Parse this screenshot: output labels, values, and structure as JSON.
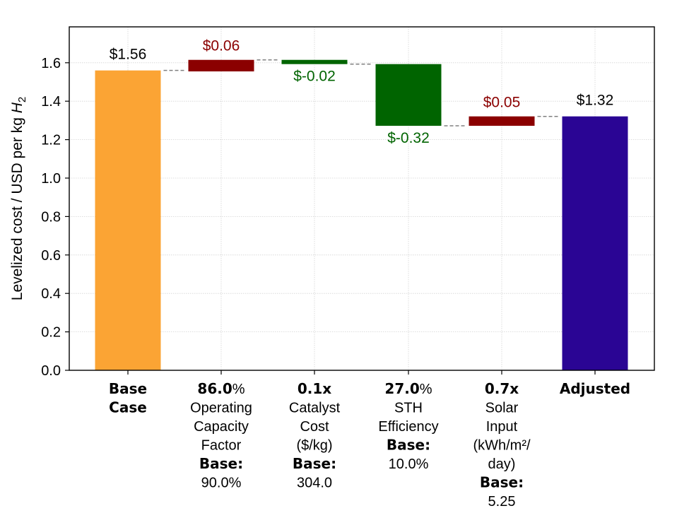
{
  "chart_data": {
    "type": "bar",
    "subtype": "waterfall",
    "ylabel": "Levelized cost / USD per kg",
    "ylabel_subscript": "H",
    "ylabel_subscript_index": "2",
    "ylim": [
      0,
      1.78
    ],
    "yticks": [
      "0.0",
      "0.2",
      "0.4",
      "0.6",
      "0.8",
      "1.0",
      "1.2",
      "1.4",
      "1.6"
    ],
    "ytick_values": [
      0,
      0.2,
      0.4,
      0.6,
      0.8,
      1.0,
      1.2,
      1.4,
      1.6
    ],
    "grid": true,
    "colors": {
      "base": "#FBA434",
      "increase": "#8B0000",
      "decrease": "#006400",
      "final": "#2A0594",
      "connector": "#808080"
    },
    "bars": [
      {
        "kind": "total",
        "start": 0,
        "end": 1.56,
        "value_label": "$1.56",
        "tick_lines": [
          {
            "bold": "Base",
            "normal": ""
          },
          {
            "bold": "Case",
            "normal": ""
          }
        ]
      },
      {
        "kind": "increase",
        "start": 1.555,
        "end": 1.615,
        "value_label": "$0.06",
        "tick_lines": [
          {
            "bold": "86.0",
            "normal": "%"
          },
          {
            "bold": "",
            "normal": "Operating"
          },
          {
            "bold": "",
            "normal": "Capacity"
          },
          {
            "bold": "",
            "normal": "Factor"
          },
          {
            "bold": "Base:",
            "normal": ""
          },
          {
            "bold": "",
            "normal": "90.0%"
          }
        ]
      },
      {
        "kind": "decrease",
        "start": 1.615,
        "end": 1.593,
        "value_label": "$-0.02",
        "tick_lines": [
          {
            "bold": "0.1x",
            "normal": ""
          },
          {
            "bold": "",
            "normal": "Catalyst"
          },
          {
            "bold": "",
            "normal": "Cost"
          },
          {
            "bold": "",
            "normal": "($/kg)"
          },
          {
            "bold": "Base:",
            "normal": ""
          },
          {
            "bold": "",
            "normal": "304.0"
          }
        ]
      },
      {
        "kind": "decrease",
        "start": 1.593,
        "end": 1.272,
        "value_label": "$-0.32",
        "tick_lines": [
          {
            "bold": "27.0",
            "normal": "%"
          },
          {
            "bold": "",
            "normal": "STH"
          },
          {
            "bold": "",
            "normal": "Efficiency"
          },
          {
            "bold": "Base:",
            "normal": ""
          },
          {
            "bold": "",
            "normal": "10.0%"
          }
        ]
      },
      {
        "kind": "increase",
        "start": 1.272,
        "end": 1.321,
        "value_label": "$0.05",
        "tick_lines": [
          {
            "bold": "0.7x",
            "normal": ""
          },
          {
            "bold": "",
            "normal": "Solar"
          },
          {
            "bold": "",
            "normal": "Input"
          },
          {
            "bold": "",
            "normal": "(kWh/m²/"
          },
          {
            "bold": "",
            "normal": "day)"
          },
          {
            "bold": "Base:",
            "normal": ""
          },
          {
            "bold": "",
            "normal": "5.25"
          }
        ]
      },
      {
        "kind": "total",
        "start": 0,
        "end": 1.321,
        "value_label": "$1.32",
        "tick_lines": [
          {
            "bold": "Adjusted",
            "normal": ""
          }
        ]
      }
    ]
  }
}
